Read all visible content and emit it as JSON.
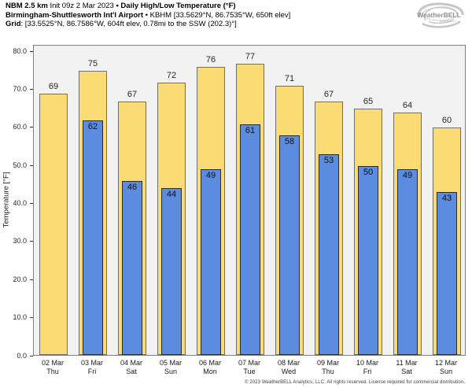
{
  "title": {
    "model": "NBM 2.5 km",
    "init": " Init 09z 2 Mar 2023 ",
    "product": "• Daily High/Low Temperature (°F)",
    "station_bold": "Birmingham-Shuttlesworth Int'l Airport",
    "station_rest": " • KBHM [33.5629°N, 86.7535°W, 650ft elev]",
    "grid_bold": "Grid",
    "grid_rest": ": [33.5525°N, 86.7586°W, 604ft elev, 0.78mi to the SSW (202.3)°]"
  },
  "logo": {
    "name": "WeatherBELL",
    "sub": "Analytics LLC"
  },
  "footer": "© 2023 WeatherBELL Analytics, LLC. All rights reserved. License required for commercial distribution.",
  "chart_data": {
    "type": "bar",
    "title": "NBM 2.5 km Init 09z 2 Mar 2023 • Daily High/Low Temperature (°F)",
    "ylabel": "Temperature [°F]",
    "ylim": [
      0,
      81.7
    ],
    "yticks": [
      0,
      10,
      20,
      30,
      40,
      50,
      60,
      70,
      80
    ],
    "ytick_labels": [
      "0.0",
      "10.0",
      "20.0",
      "30.0",
      "40.0",
      "50.0",
      "60.0",
      "70.0",
      "80.0"
    ],
    "grid": false,
    "legend": "none",
    "categories": [
      {
        "date": "02 Mar",
        "day": "Thu"
      },
      {
        "date": "03 Mar",
        "day": "Fri"
      },
      {
        "date": "04 Mar",
        "day": "Sat"
      },
      {
        "date": "05 Mar",
        "day": "Sun"
      },
      {
        "date": "06 Mar",
        "day": "Mon"
      },
      {
        "date": "07 Mar",
        "day": "Tue"
      },
      {
        "date": "08 Mar",
        "day": "Wed"
      },
      {
        "date": "09 Mar",
        "day": "Thu"
      },
      {
        "date": "10 Mar",
        "day": "Fri"
      },
      {
        "date": "11 Mar",
        "day": "Sat"
      },
      {
        "date": "12 Mar",
        "day": "Sun"
      }
    ],
    "series": [
      {
        "name": "Daily High",
        "color": "#FBDB73",
        "values": [
          69,
          75,
          67,
          72,
          76,
          77,
          71,
          67,
          65,
          64,
          60
        ]
      },
      {
        "name": "Daily Low",
        "color": "#5B8CE0",
        "values": [
          null,
          62,
          46,
          44,
          49,
          61,
          58,
          53,
          50,
          49,
          43
        ]
      }
    ]
  }
}
